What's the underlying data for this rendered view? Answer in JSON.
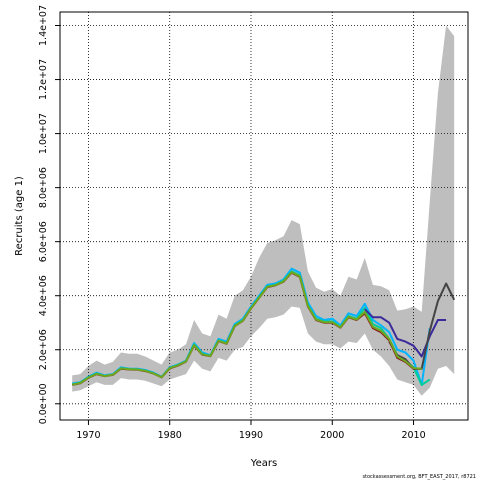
{
  "chart_data": {
    "type": "line",
    "xlabel": "Years",
    "ylabel": "Recruits (age 1)",
    "caption": "stockassessment.org, BFT_EAST_2017, r8721",
    "xlim": [
      1966.5,
      2016.7
    ],
    "ylim": [
      -600000,
      14500000
    ],
    "x_ticks": [
      1970,
      1980,
      1990,
      2000,
      2010
    ],
    "x_tick_labels": [
      "1970",
      "1980",
      "1990",
      "2000",
      "2010"
    ],
    "y_ticks": [
      0,
      2000000,
      4000000,
      6000000,
      8000000,
      10000000,
      12000000,
      14000000
    ],
    "y_tick_labels": [
      "0.0e+00",
      "2.0e+06",
      "4.0e+06",
      "6.0e+06",
      "8.0e+06",
      "1.0e+07",
      "1.2e+07",
      "1.4e+07"
    ],
    "grid": true,
    "confidence_band": {
      "color": "#bebebe",
      "x": [
        1968,
        1969,
        1970,
        1971,
        1972,
        1973,
        1974,
        1975,
        1976,
        1977,
        1978,
        1979,
        1980,
        1981,
        1982,
        1983,
        1984,
        1985,
        1986,
        1987,
        1988,
        1989,
        1990,
        1991,
        1992,
        1993,
        1994,
        1995,
        1996,
        1997,
        1998,
        1999,
        2000,
        2001,
        2002,
        2003,
        2004,
        2005,
        2006,
        2007,
        2008,
        2009,
        2010,
        2011,
        2012,
        2013,
        2014,
        2015
      ],
      "upper": [
        1050000,
        1100000,
        1400000,
        1600000,
        1450000,
        1550000,
        1900000,
        1850000,
        1850000,
        1750000,
        1600000,
        1450000,
        1900000,
        2000000,
        2200000,
        3100000,
        2600000,
        2500000,
        3300000,
        3150000,
        4000000,
        4200000,
        4700000,
        5400000,
        5950000,
        6050000,
        6200000,
        6800000,
        6650000,
        4900000,
        4300000,
        4150000,
        4250000,
        4000000,
        4700000,
        4600000,
        5400000,
        4400000,
        4350000,
        4200000,
        3450000,
        3500000,
        3600000,
        3400000,
        7500000,
        11500000,
        14000000,
        13600000
      ],
      "lower": [
        450000,
        500000,
        650000,
        800000,
        700000,
        700000,
        950000,
        900000,
        900000,
        850000,
        750000,
        650000,
        900000,
        1000000,
        1100000,
        1600000,
        1300000,
        1200000,
        1700000,
        1600000,
        2000000,
        2100000,
        2500000,
        2800000,
        3150000,
        3200000,
        3300000,
        3600000,
        3550000,
        2600000,
        2300000,
        2200000,
        2200000,
        2050000,
        2300000,
        2250000,
        2600000,
        2000000,
        1750000,
        1400000,
        900000,
        800000,
        700000,
        300000,
        600000,
        1300000,
        1400000,
        1100000
      ]
    },
    "series": [
      {
        "color": "#00b4ff",
        "x": [
          1968,
          1969,
          1970,
          1971,
          1972,
          1973,
          1974,
          1975,
          1976,
          1977,
          1978,
          1979,
          1980,
          1981,
          1982,
          1983,
          1984,
          1985,
          1986,
          1987,
          1988,
          1989,
          1990,
          1991,
          1992,
          1993,
          1994,
          1995,
          1996,
          1997,
          1998,
          1999,
          2000,
          2001,
          2002,
          2003,
          2004,
          2005,
          2006,
          2007,
          2008,
          2009,
          2010,
          2011,
          2012
        ],
        "values": [
          750000,
          800000,
          1000000,
          1150000,
          1050000,
          1100000,
          1350000,
          1300000,
          1300000,
          1250000,
          1150000,
          1000000,
          1350000,
          1450000,
          1600000,
          2250000,
          1900000,
          1800000,
          2400000,
          2300000,
          2950000,
          3150000,
          3600000,
          4000000,
          4400000,
          4450000,
          4600000,
          5000000,
          4850000,
          3750000,
          3250000,
          3100000,
          3150000,
          2900000,
          3350000,
          3250000,
          3700000,
          3100000,
          2900000,
          2650000,
          2000000,
          1900000,
          1600000,
          700000,
          2800000
        ]
      },
      {
        "color": "#00cc99",
        "x": [
          1968,
          1969,
          1970,
          1971,
          1972,
          1973,
          1974,
          1975,
          1976,
          1977,
          1978,
          1979,
          1980,
          1981,
          1982,
          1983,
          1984,
          1985,
          1986,
          1987,
          1988,
          1989,
          1990,
          1991,
          1992,
          1993,
          1994,
          1995,
          1996,
          1997,
          1998,
          1999,
          2000,
          2001,
          2002,
          2003,
          2004,
          2005,
          2006,
          2007,
          2008,
          2009,
          2010,
          2011,
          2012
        ],
        "values": [
          720000,
          780000,
          980000,
          1120000,
          1030000,
          1080000,
          1320000,
          1290000,
          1280000,
          1230000,
          1130000,
          990000,
          1330000,
          1430000,
          1580000,
          2200000,
          1850000,
          1780000,
          2350000,
          2250000,
          2900000,
          3100000,
          3550000,
          3950000,
          4350000,
          4400000,
          4550000,
          4900000,
          4750000,
          3650000,
          3150000,
          3050000,
          3050000,
          2850000,
          3250000,
          3150000,
          3550000,
          2950000,
          2800000,
          2400000,
          1800000,
          1600000,
          1350000,
          700000,
          900000
        ]
      },
      {
        "color": "#3a2a9a",
        "x": [
          2004,
          2005,
          2006,
          2007,
          2008,
          2009,
          2010,
          2011,
          2012,
          2013,
          2014
        ],
        "values": [
          3500000,
          3200000,
          3200000,
          3000000,
          2400000,
          2300000,
          2150000,
          1750000,
          2500000,
          3100000,
          3100000
        ]
      },
      {
        "color": "#444444",
        "x": [
          2007,
          2008,
          2009,
          2010,
          2011,
          2012,
          2013,
          2014,
          2015
        ],
        "values": [
          2300000,
          1800000,
          1650000,
          1300000,
          1300000,
          2700000,
          3800000,
          4450000,
          3850000
        ]
      },
      {
        "color": "#8b1c1c",
        "x": [
          1968,
          1969,
          1970,
          1971,
          1972,
          1973,
          1974,
          1975,
          1976,
          1977,
          1978,
          1979,
          1980,
          1981,
          1982,
          1983,
          1984,
          1985,
          1986,
          1987,
          1988,
          1989,
          1990,
          1991,
          1992,
          1993,
          1994,
          1995,
          1996,
          1997,
          1998,
          1999,
          2000,
          2001,
          2002,
          2003,
          2004,
          2005,
          2006,
          2007,
          2008,
          2009,
          2010,
          2011
        ],
        "values": [
          700000,
          760000,
          960000,
          1100000,
          1020000,
          1070000,
          1300000,
          1270000,
          1260000,
          1210000,
          1120000,
          980000,
          1310000,
          1410000,
          1560000,
          2150000,
          1820000,
          1760000,
          2320000,
          2220000,
          2870000,
          3070000,
          3530000,
          3920000,
          4320000,
          4380000,
          4520000,
          4850000,
          4700000,
          3600000,
          3100000,
          3000000,
          3000000,
          2820000,
          3200000,
          3100000,
          3350000,
          2800000,
          2650000,
          2350000,
          1700000,
          1550000,
          1300000,
          1300000
        ]
      },
      {
        "color": "#6ea81e",
        "x": [
          1968,
          1969,
          1970,
          1971,
          1972,
          1973,
          1974,
          1975,
          1976,
          1977,
          1978,
          1979,
          1980,
          1981,
          1982,
          1983,
          1984,
          1985,
          1986,
          1987,
          1988,
          1989,
          1990,
          1991,
          1992,
          1993,
          1994,
          1995,
          1996,
          1997,
          1998,
          1999,
          2000,
          2001,
          2002,
          2003,
          2004,
          2005,
          2006,
          2007,
          2008,
          2009,
          2010,
          2011
        ],
        "values": [
          710000,
          770000,
          970000,
          1110000,
          1025000,
          1075000,
          1310000,
          1280000,
          1270000,
          1220000,
          1125000,
          985000,
          1320000,
          1420000,
          1570000,
          2170000,
          1830000,
          1770000,
          2330000,
          2230000,
          2880000,
          3080000,
          3540000,
          3930000,
          4330000,
          4390000,
          4530000,
          4870000,
          4720000,
          3620000,
          3120000,
          3020000,
          3020000,
          2830000,
          3220000,
          3120000,
          3400000,
          2850000,
          2700000,
          2400000,
          1750000,
          1580000,
          1320000,
          1300000
        ]
      }
    ]
  }
}
